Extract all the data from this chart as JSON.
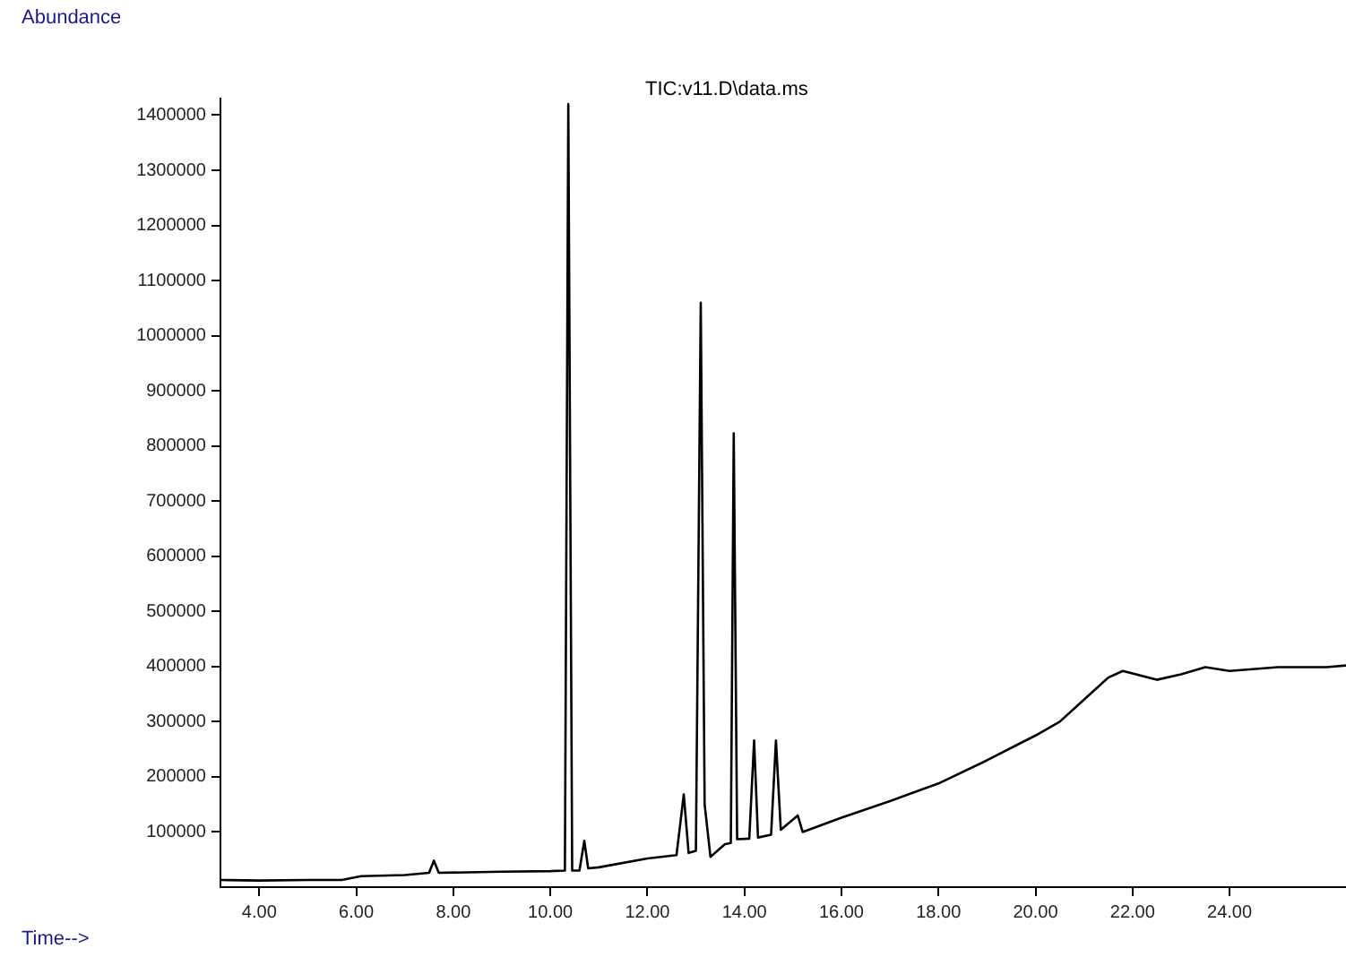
{
  "chart_data": {
    "type": "line",
    "title": "TIC:v11.D\\data.ms",
    "xlabel": "Time-->",
    "ylabel": "Abundance",
    "x": [
      3.2,
      4,
      5,
      5.7,
      6.1,
      7,
      7.5,
      7.6,
      7.7,
      9,
      10,
      10.3,
      10.37,
      10.45,
      10.6,
      10.7,
      10.78,
      11,
      12,
      12.6,
      12.75,
      12.85,
      13.0,
      13.1,
      13.18,
      13.3,
      13.6,
      13.72,
      13.78,
      13.85,
      14.1,
      14.2,
      14.28,
      14.55,
      14.65,
      14.75,
      15.1,
      15.2,
      16,
      17,
      18,
      19,
      20,
      20.5,
      21,
      21.5,
      21.8,
      22.5,
      23,
      23.5,
      24,
      25,
      26,
      26.4
    ],
    "values": [
      13000,
      12000,
      13000,
      13000,
      20000,
      22000,
      26000,
      48000,
      26000,
      28000,
      29000,
      30000,
      1420000,
      30000,
      30000,
      84000,
      34000,
      36000,
      52000,
      58000,
      168000,
      62000,
      66000,
      1060000,
      150000,
      55000,
      78000,
      80000,
      823000,
      87000,
      88000,
      266000,
      90000,
      95000,
      266000,
      104000,
      130000,
      100000,
      126000,
      156000,
      188000,
      230000,
      275000,
      300000,
      340000,
      380000,
      392000,
      376000,
      386000,
      399000,
      392000,
      399000,
      399000,
      402000
    ],
    "color": "#000000",
    "marker": "none",
    "grid": false,
    "legend": false,
    "xlim": [
      3.2,
      26.4
    ],
    "ylim": [
      0,
      1430000
    ],
    "xticks": [
      {
        "value": 4,
        "label": "4.00"
      },
      {
        "value": 6,
        "label": "6.00"
      },
      {
        "value": 8,
        "label": "8.00"
      },
      {
        "value": 10,
        "label": "10.00"
      },
      {
        "value": 12,
        "label": "12.00"
      },
      {
        "value": 14,
        "label": "14.00"
      },
      {
        "value": 16,
        "label": "16.00"
      },
      {
        "value": 18,
        "label": "18.00"
      },
      {
        "value": 20,
        "label": "20.00"
      },
      {
        "value": 22,
        "label": "22.00"
      },
      {
        "value": 24,
        "label": "24.00"
      }
    ],
    "yticks": [
      100000,
      200000,
      300000,
      400000,
      500000,
      600000,
      700000,
      800000,
      900000,
      1000000,
      1100000,
      1200000,
      1300000,
      1400000
    ]
  }
}
